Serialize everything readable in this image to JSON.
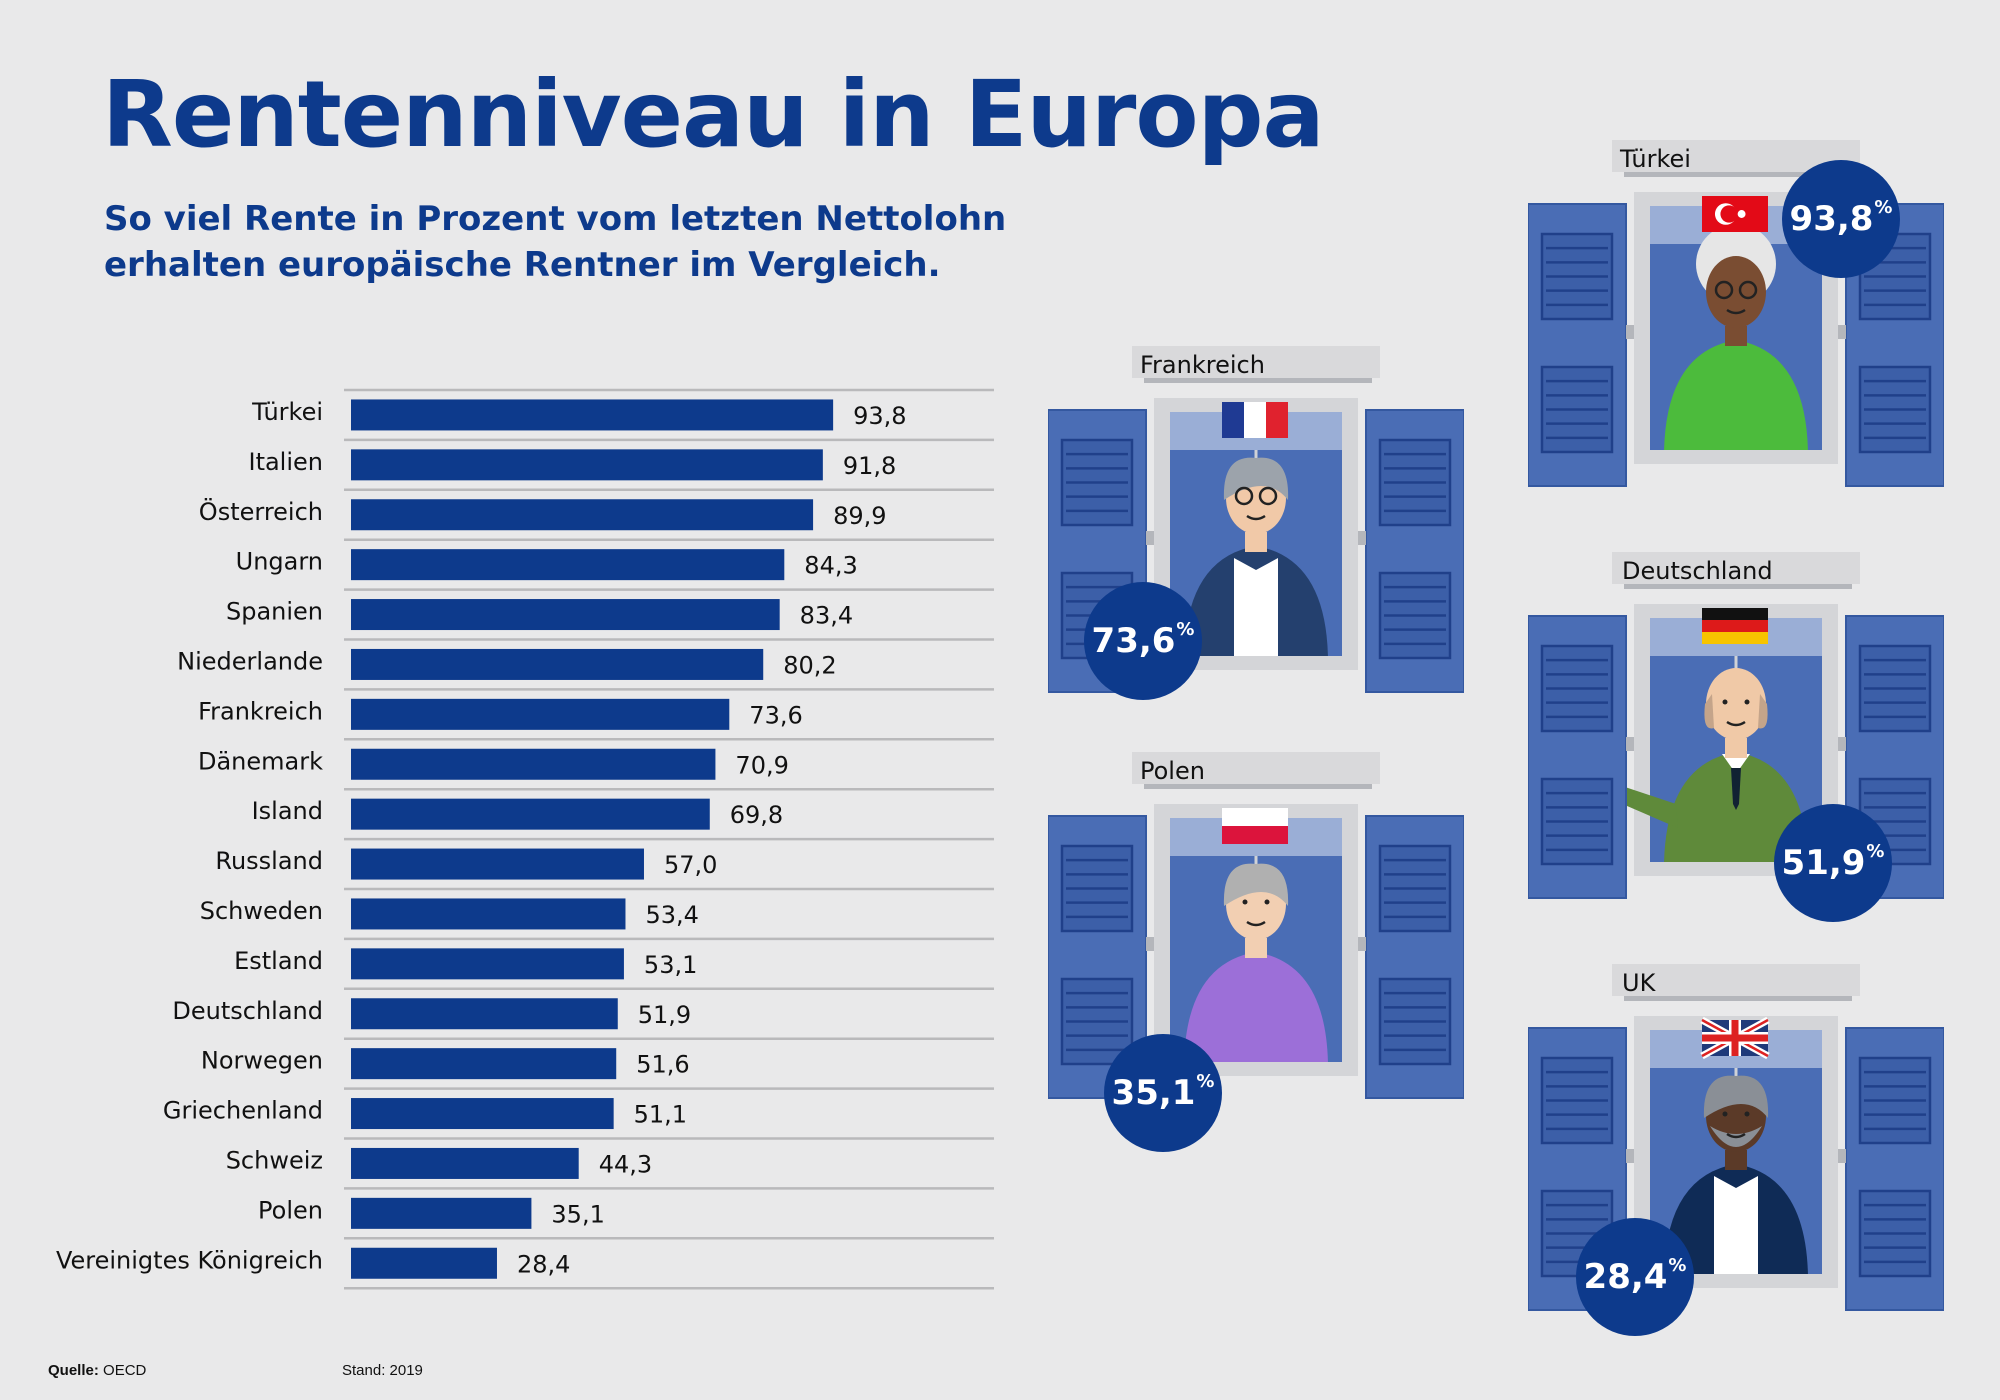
{
  "title": "Rentenniveau in Europa",
  "subtitle": {
    "line1": "So viel Rente in Prozent vom letzten Nettolohn",
    "line2": "erhalten europäische Rentner im Vergleich."
  },
  "chart_data": {
    "type": "bar",
    "orientation": "horizontal",
    "title": "Rentenniveau in Europa",
    "categories": [
      "Türkei",
      "Italien",
      "Österreich",
      "Ungarn",
      "Spanien",
      "Niederlande",
      "Frankreich",
      "Dänemark",
      "Island",
      "Russland",
      "Schweden",
      "Estland",
      "Deutschland",
      "Norwegen",
      "Griechenland",
      "Schweiz",
      "Polen",
      "Vereinigtes Königreich"
    ],
    "values": [
      93.8,
      91.8,
      89.9,
      84.3,
      83.4,
      80.2,
      73.6,
      70.9,
      69.8,
      57.0,
      53.4,
      53.1,
      51.9,
      51.6,
      51.1,
      44.3,
      35.1,
      28.4
    ],
    "value_labels": [
      "93,8",
      "91,8",
      "89,9",
      "84,3",
      "83,4",
      "80,2",
      "73,6",
      "70,9",
      "69,8",
      "57,0",
      "53,4",
      "53,1",
      "51,9",
      "51,6",
      "51,1",
      "44,3",
      "35,1",
      "28,4"
    ],
    "unit": "Prozent vom letzten Nettolohn",
    "xlim": [
      0,
      100
    ],
    "bar_color": "#0d3a8c"
  },
  "highlights": [
    {
      "key": "tuerkei",
      "country": "Türkei",
      "value": "93,8",
      "unit": "%",
      "flag": "turkey-flag"
    },
    {
      "key": "frankreich",
      "country": "Frankreich",
      "value": "73,6",
      "unit": "%",
      "flag": "france-flag"
    },
    {
      "key": "deutschland",
      "country": "Deutschland",
      "value": "51,9",
      "unit": "%",
      "flag": "germany-flag"
    },
    {
      "key": "polen",
      "country": "Polen",
      "value": "35,1",
      "unit": "%",
      "flag": "poland-flag"
    },
    {
      "key": "uk",
      "country": "UK",
      "value": "28,4",
      "unit": "%",
      "flag": "uk-flag"
    }
  ],
  "footer": {
    "source_label": "Quelle:",
    "source": "OECD",
    "date_label": "Stand: 2019"
  },
  "colors": {
    "brand_blue": "#0d3a8c",
    "shutter_blue": "#4a6db5",
    "background": "#e9e9ea"
  }
}
